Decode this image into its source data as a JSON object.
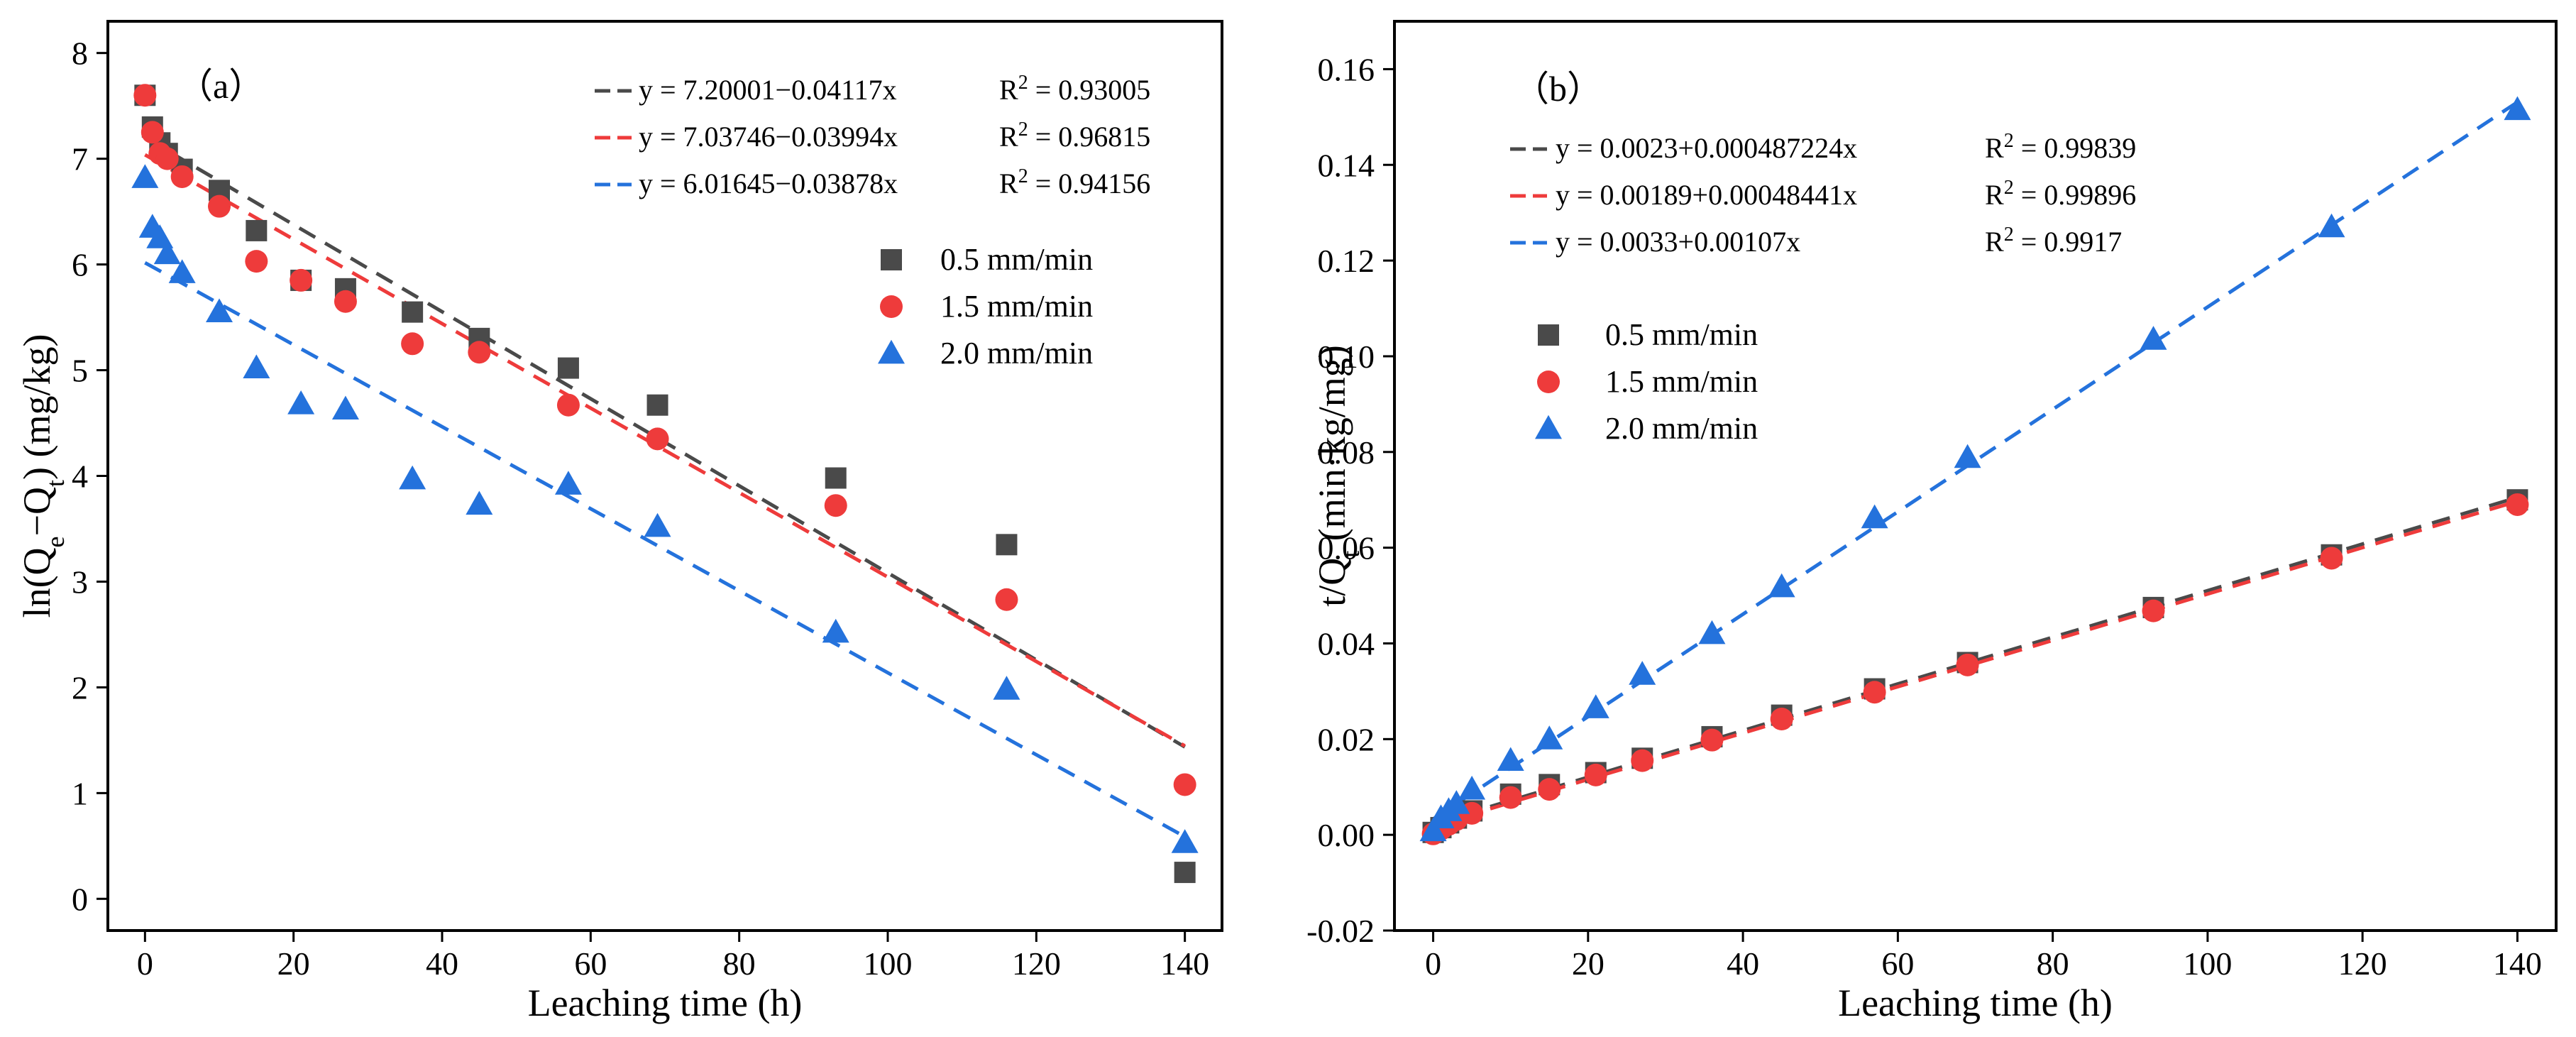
{
  "chart_data": [
    {
      "id": "a",
      "type": "scatter",
      "panel_label": "（a）",
      "xlabel": "Leaching time (h)",
      "ylabel": "ln(Qe−Qt) (mg/kg)",
      "ylabel_main": "ln(Q",
      "ylabel_sub1": "e",
      "ylabel_mid": "−Q",
      "ylabel_sub2": "t",
      "ylabel_end": ") (mg/kg)",
      "xlim": [
        -5,
        145
      ],
      "ylim": [
        -0.3,
        8.3
      ],
      "xticks": [
        0,
        20,
        40,
        60,
        80,
        100,
        120,
        140
      ],
      "xtick_labels": [
        "0",
        "20",
        "40",
        "60",
        "80",
        "100",
        "120",
        "140"
      ],
      "yticks": [
        0,
        1,
        2,
        3,
        4,
        5,
        6,
        7,
        8
      ],
      "ytick_labels": [
        "0",
        "1",
        "2",
        "3",
        "4",
        "5",
        "6",
        "7",
        "8"
      ],
      "x": [
        0,
        1,
        2,
        3,
        5,
        10,
        15,
        21,
        27,
        36,
        45,
        57,
        69,
        93,
        116,
        140
      ],
      "series": [
        {
          "name": "0.5 mm/min",
          "label": "0.5 mm/min",
          "marker": "square",
          "color": "#4a4a4a",
          "values": [
            7.6,
            7.3,
            7.15,
            7.05,
            6.9,
            6.7,
            6.32,
            5.85,
            5.77,
            5.55,
            5.3,
            5.02,
            4.67,
            3.98,
            3.35,
            0.25
          ]
        },
        {
          "name": "1.5 mm/min",
          "label": "1.5 mm/min",
          "marker": "circle",
          "color": "#ee3b3b",
          "values": [
            7.6,
            7.25,
            7.05,
            7.0,
            6.83,
            6.55,
            6.03,
            5.85,
            5.65,
            5.25,
            5.17,
            4.67,
            4.35,
            3.72,
            2.83,
            1.08
          ]
        },
        {
          "name": "2.0 mm/min",
          "label": "2.0 mm/min",
          "marker": "triangle",
          "color": "#2472dc",
          "values": [
            6.82,
            6.35,
            6.25,
            6.1,
            5.92,
            5.55,
            5.02,
            4.68,
            4.63,
            3.97,
            3.73,
            3.92,
            3.52,
            2.52,
            1.98,
            0.53
          ]
        }
      ],
      "fits": [
        {
          "color": "#4a4a4a",
          "intercept": 7.20001,
          "slope": -0.04117,
          "eq": "y = 7.20001−0.04117x",
          "r2_label": "R",
          "r2_exp": "2",
          "r2_value": " = 0.93005"
        },
        {
          "color": "#ee3b3b",
          "intercept": 7.03746,
          "slope": -0.03994,
          "eq": "y = 7.03746−0.03994x",
          "r2_label": "R",
          "r2_exp": "2",
          "r2_value": " = 0.96815"
        },
        {
          "color": "#2472dc",
          "intercept": 6.01645,
          "slope": -0.03878,
          "eq": "y = 6.01645−0.03878x",
          "r2_label": "R",
          "r2_exp": "2",
          "r2_value": " = 0.94156"
        }
      ]
    },
    {
      "id": "b",
      "type": "scatter",
      "panel_label": "（b）",
      "xlabel": "Leaching time (h)",
      "ylabel": "t/Qt (min·kg/mg)",
      "ylabel_main": "t/Q",
      "ylabel_sub1": "t",
      "ylabel_end": " (min·kg/mg)",
      "xlim": [
        -5,
        145
      ],
      "ylim": [
        -0.02,
        0.17
      ],
      "xticks": [
        0,
        20,
        40,
        60,
        80,
        100,
        120,
        140
      ],
      "xtick_labels": [
        "0",
        "20",
        "40",
        "60",
        "80",
        "100",
        "120",
        "140"
      ],
      "yticks": [
        -0.02,
        0,
        0.02,
        0.04,
        0.06,
        0.08,
        0.1,
        0.12,
        0.14,
        0.16
      ],
      "ytick_labels": [
        "-0.02",
        "0.00",
        "0.02",
        "0.04",
        "0.06",
        "0.08",
        "0.10",
        "0.12",
        "0.14",
        "0.16"
      ],
      "x": [
        0,
        1,
        2,
        3,
        5,
        10,
        15,
        21,
        27,
        36,
        45,
        57,
        69,
        93,
        116,
        140
      ],
      "series": [
        {
          "name": "0.5 mm/min",
          "label": "0.5 mm/min",
          "marker": "square",
          "color": "#4a4a4a",
          "values": [
            0.0005,
            0.0015,
            0.0025,
            0.0035,
            0.005,
            0.0085,
            0.0105,
            0.013,
            0.016,
            0.0205,
            0.025,
            0.0305,
            0.036,
            0.0475,
            0.0585,
            0.07
          ]
        },
        {
          "name": "1.5 mm/min",
          "label": "1.5 mm/min",
          "marker": "circle",
          "color": "#ee3b3b",
          "values": [
            0.0002,
            0.0012,
            0.0022,
            0.0032,
            0.0045,
            0.0078,
            0.0095,
            0.0125,
            0.0155,
            0.0198,
            0.0242,
            0.0298,
            0.0355,
            0.0468,
            0.0578,
            0.069
          ]
        },
        {
          "name": "2.0 mm/min",
          "label": "2.0 mm/min",
          "marker": "triangle",
          "color": "#2472dc",
          "values": [
            0.0008,
            0.0035,
            0.005,
            0.0065,
            0.0095,
            0.0155,
            0.02,
            0.0265,
            0.0335,
            0.042,
            0.0518,
            0.0662,
            0.0788,
            0.1035,
            0.127,
            0.1515
          ]
        }
      ],
      "fits": [
        {
          "color": "#4a4a4a",
          "intercept": 0.0023,
          "slope": 0.000487224,
          "eq": "y = 0.0023+0.000487224x",
          "r2_label": "R",
          "r2_exp": "2",
          "r2_value": " = 0.99839"
        },
        {
          "color": "#ee3b3b",
          "intercept": 0.00189,
          "slope": 0.00048441,
          "eq": "y = 0.00189+0.00048441x",
          "r2_label": "R",
          "r2_exp": "2",
          "r2_value": " = 0.99896"
        },
        {
          "color": "#2472dc",
          "intercept": 0.0033,
          "slope": 0.00107,
          "eq": "y = 0.0033+0.00107x",
          "r2_label": "R",
          "r2_exp": "2",
          "r2_value": " = 0.9917"
        }
      ]
    }
  ]
}
